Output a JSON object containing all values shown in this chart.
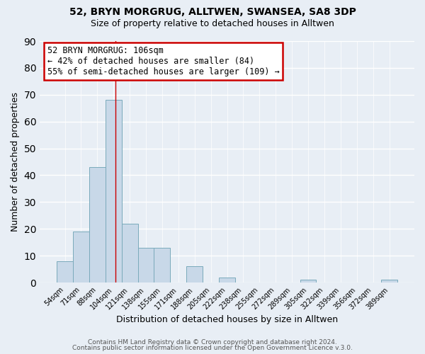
{
  "title": "52, BRYN MORGRUG, ALLTWEN, SWANSEA, SA8 3DP",
  "subtitle": "Size of property relative to detached houses in Alltwen",
  "xlabel": "Distribution of detached houses by size in Alltwen",
  "ylabel": "Number of detached properties",
  "bar_labels": [
    "54sqm",
    "71sqm",
    "88sqm",
    "104sqm",
    "121sqm",
    "138sqm",
    "155sqm",
    "171sqm",
    "188sqm",
    "205sqm",
    "222sqm",
    "238sqm",
    "255sqm",
    "272sqm",
    "289sqm",
    "305sqm",
    "322sqm",
    "339sqm",
    "356sqm",
    "372sqm",
    "389sqm"
  ],
  "bar_values": [
    8,
    19,
    43,
    68,
    22,
    13,
    13,
    0,
    6,
    0,
    2,
    0,
    0,
    0,
    0,
    1,
    0,
    0,
    0,
    0,
    1
  ],
  "bar_color": "#c8d8e8",
  "bar_edge_color": "#7aaabb",
  "ylim": [
    0,
    90
  ],
  "yticks": [
    0,
    10,
    20,
    30,
    40,
    50,
    60,
    70,
    80,
    90
  ],
  "annotation_title": "52 BRYN MORGRUG: 106sqm",
  "annotation_line1": "← 42% of detached houses are smaller (84)",
  "annotation_line2": "55% of semi-detached houses are larger (109) →",
  "annotation_box_color": "#ffffff",
  "annotation_box_edge": "#cc0000",
  "vline_color": "#cc0000",
  "footer1": "Contains HM Land Registry data © Crown copyright and database right 2024.",
  "footer2": "Contains public sector information licensed under the Open Government Licence v.3.0.",
  "background_color": "#e8eef5",
  "plot_background": "#e8eef5",
  "grid_color": "#ffffff",
  "title_fontsize": 10,
  "subtitle_fontsize": 9
}
